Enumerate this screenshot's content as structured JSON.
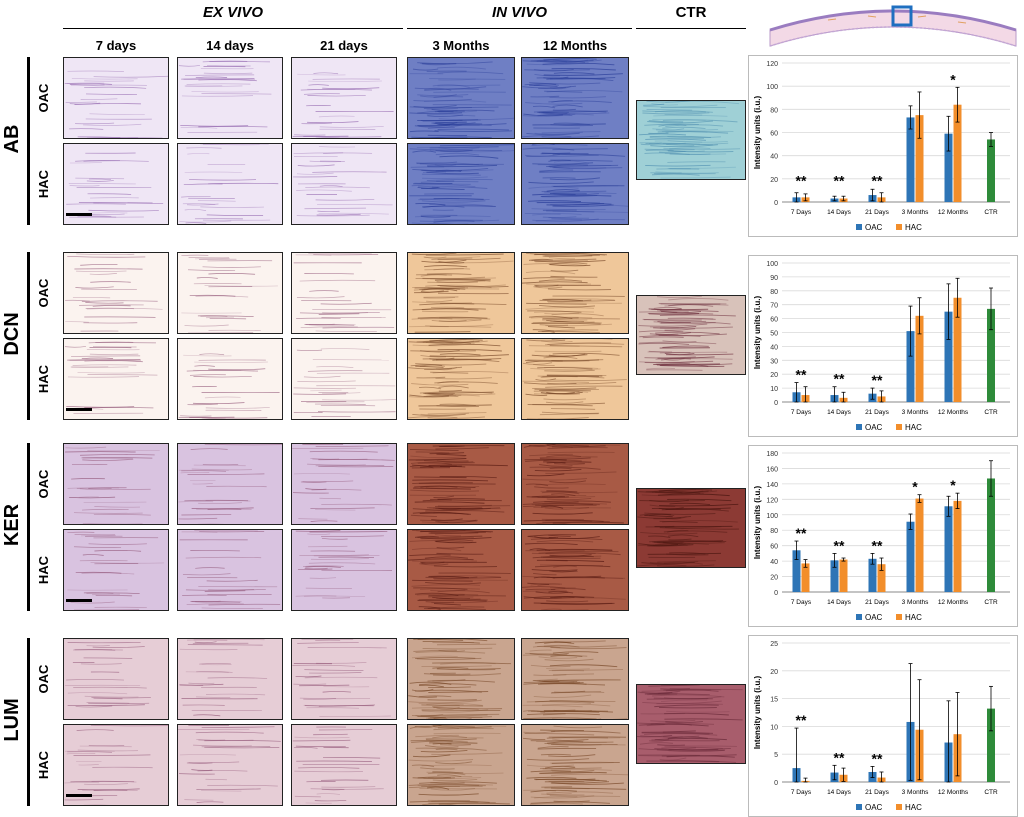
{
  "headers": {
    "ex_vivo": "EX VIVO",
    "in_vivo": "IN VIVO",
    "ctr": "CTR"
  },
  "columns": [
    "7 days",
    "14 days",
    "21 days",
    "3 Months",
    "12 Months"
  ],
  "sub_rows": [
    "OAC",
    "HAC"
  ],
  "stains": [
    "AB",
    "DCN",
    "KER",
    "LUM"
  ],
  "colors": {
    "oac": "#2E75B6",
    "hac": "#F28E2B",
    "ctr": "#2E8B3A",
    "ab_pale": "#efe6f5",
    "ab_stain": "#8a5aa8",
    "ab_invivo": "#6f7fc4",
    "ab_ctr": "#9fd0d6",
    "dcn_pale": "#fbf3ef",
    "dcn_invivo": "#efc79a",
    "dcn_ctr": "#d8c2ba",
    "ker_pale": "#d9c3e0",
    "ker_invivo": "#a85a45",
    "ker_ctr": "#8c3a34",
    "lum_pale": "#e6cdd6",
    "lum_invivo": "#c9a58f",
    "lum_ctr": "#a85d6c"
  },
  "chart_data": [
    {
      "type": "bar",
      "panel": "AB",
      "categories": [
        "7 Days",
        "14 Days",
        "21 Days",
        "3 Months",
        "12 Months",
        "CTR"
      ],
      "series": [
        {
          "name": "OAC",
          "values": [
            4,
            3,
            6,
            73,
            59,
            null
          ],
          "errors": [
            4,
            2,
            5,
            10,
            15,
            null
          ]
        },
        {
          "name": "HAC",
          "values": [
            4,
            3,
            4,
            75,
            84,
            null
          ],
          "errors": [
            3,
            2,
            4,
            20,
            15,
            null
          ]
        },
        {
          "name": "CTR",
          "values": [
            null,
            null,
            null,
            null,
            null,
            54
          ],
          "errors": [
            null,
            null,
            null,
            null,
            null,
            6
          ]
        }
      ],
      "annotations": [
        {
          "category": "7 Days",
          "text": "**"
        },
        {
          "category": "14 Days",
          "text": "**"
        },
        {
          "category": "21 Days",
          "text": "**"
        },
        {
          "category": "12 Months",
          "text": "*"
        }
      ],
      "ylabel": "Intensity units (i.u.)",
      "ylim": [
        0,
        120
      ],
      "yticks": [
        0,
        20,
        40,
        60,
        80,
        100,
        120
      ],
      "legend": [
        "OAC",
        "HAC"
      ]
    },
    {
      "type": "bar",
      "panel": "DCN",
      "categories": [
        "7 Days",
        "14 Days",
        "21 Days",
        "3 Months",
        "12 Months",
        "CTR"
      ],
      "series": [
        {
          "name": "OAC",
          "values": [
            7,
            5,
            6,
            51,
            65,
            null
          ],
          "errors": [
            7,
            6,
            4,
            18,
            20,
            null
          ]
        },
        {
          "name": "HAC",
          "values": [
            5,
            3,
            4,
            62,
            75,
            null
          ],
          "errors": [
            6,
            4,
            4,
            13,
            14,
            null
          ]
        },
        {
          "name": "CTR",
          "values": [
            null,
            null,
            null,
            null,
            null,
            67
          ],
          "errors": [
            null,
            null,
            null,
            null,
            null,
            15
          ]
        }
      ],
      "annotations": [
        {
          "category": "7 Days",
          "text": "**"
        },
        {
          "category": "14 Days",
          "text": "**"
        },
        {
          "category": "21 Days",
          "text": "**"
        }
      ],
      "ylabel": "Intensity units (i.u.)",
      "ylim": [
        0,
        100
      ],
      "yticks": [
        0,
        10,
        20,
        30,
        40,
        50,
        60,
        70,
        80,
        90,
        100
      ],
      "legend": [
        "OAC",
        "HAC"
      ]
    },
    {
      "type": "bar",
      "panel": "KER",
      "categories": [
        "7 Days",
        "14 Days",
        "21 Days",
        "3 Months",
        "12 Months",
        "CTR"
      ],
      "series": [
        {
          "name": "OAC",
          "values": [
            54,
            41,
            43,
            91,
            111,
            null
          ],
          "errors": [
            12,
            9,
            7,
            10,
            13,
            null
          ]
        },
        {
          "name": "HAC",
          "values": [
            37,
            42,
            36,
            121,
            118,
            null
          ],
          "errors": [
            5,
            2,
            8,
            5,
            10,
            null
          ]
        },
        {
          "name": "CTR",
          "values": [
            null,
            null,
            null,
            null,
            null,
            147
          ],
          "errors": [
            null,
            null,
            null,
            null,
            null,
            23
          ]
        }
      ],
      "annotations": [
        {
          "category": "7 Days",
          "text": "**"
        },
        {
          "category": "14 Days",
          "text": "**"
        },
        {
          "category": "21 Days",
          "text": "**"
        },
        {
          "category": "3 Months",
          "text": "*"
        },
        {
          "category": "12 Months",
          "text": "*"
        }
      ],
      "ylabel": "Intensity units (i.u.)",
      "ylim": [
        0,
        180
      ],
      "yticks": [
        0,
        20,
        40,
        60,
        80,
        100,
        120,
        140,
        160,
        180
      ],
      "legend": [
        "OAC",
        "HAC"
      ]
    },
    {
      "type": "bar",
      "panel": "LUM",
      "categories": [
        "7 Days",
        "14 Days",
        "21 Days",
        "3 Months",
        "12 Months",
        "CTR"
      ],
      "series": [
        {
          "name": "OAC",
          "values": [
            2.5,
            1.7,
            1.8,
            10.8,
            7.1,
            null
          ],
          "errors": [
            7.2,
            1.3,
            1.0,
            10.5,
            7.5,
            null
          ]
        },
        {
          "name": "HAC",
          "values": [
            0.2,
            1.3,
            0.8,
            9.4,
            8.6,
            null
          ],
          "errors": [
            0.5,
            1.2,
            1.0,
            9.0,
            7.5,
            null
          ]
        },
        {
          "name": "CTR",
          "values": [
            null,
            null,
            null,
            null,
            null,
            13.2
          ],
          "errors": [
            null,
            null,
            null,
            null,
            null,
            4.0
          ]
        }
      ],
      "annotations": [
        {
          "category": "7 Days",
          "text": "**"
        },
        {
          "category": "14 Days",
          "text": "**"
        },
        {
          "category": "21 Days",
          "text": "**"
        }
      ],
      "ylabel": "Intensity units (i.u.)",
      "ylim": [
        0,
        25
      ],
      "yticks": [
        0,
        5,
        10,
        15,
        20,
        25
      ],
      "legend": [
        "OAC",
        "HAC"
      ]
    }
  ]
}
